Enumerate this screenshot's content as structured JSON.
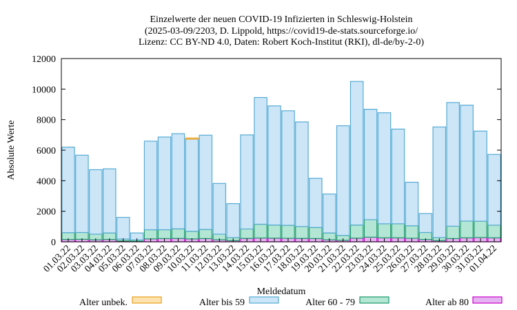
{
  "chart_data": {
    "type": "bar",
    "stacked": true,
    "title_lines": [
      "Einzelwerte der neuen COVID-19 Infizierten in Schleswig-Holstein",
      "(2025-03-09/2203, D. Lippold, https://covid19-de-stats.sourceforge.io/",
      "Lizenz: CC BY-ND 4.0, Daten: Robert Koch-Institut (RKI), dl-de/by-2-0)"
    ],
    "xlabel": "Meldedatum",
    "ylabel": "Absolute Werte",
    "ylim": [
      0,
      12000
    ],
    "yticks": [
      0,
      2000,
      4000,
      6000,
      8000,
      10000,
      12000
    ],
    "grid": false,
    "legend_position": "bottom",
    "categories": [
      "01.03.22",
      "02.03.22",
      "03.03.22",
      "04.03.22",
      "05.03.22",
      "06.03.22",
      "07.03.22",
      "08.03.22",
      "09.03.22",
      "10.03.22",
      "11.03.22",
      "12.03.22",
      "13.03.22",
      "14.03.22",
      "15.03.22",
      "16.03.22",
      "17.03.22",
      "18.03.22",
      "19.03.22",
      "20.03.22",
      "21.03.22",
      "22.03.22",
      "23.03.22",
      "24.03.22",
      "25.03.22",
      "26.03.22",
      "27.03.22",
      "28.03.22",
      "29.03.22",
      "30.03.22",
      "31.03.22",
      "01.04.22"
    ],
    "series": [
      {
        "name": "Alter ab 80",
        "color": "#cc00cc",
        "fill": "#e6b3f2",
        "values": [
          150,
          160,
          130,
          150,
          60,
          40,
          190,
          210,
          220,
          190,
          210,
          130,
          80,
          220,
          250,
          240,
          230,
          220,
          210,
          130,
          100,
          240,
          300,
          260,
          260,
          230,
          150,
          80,
          210,
          260,
          280,
          260
        ]
      },
      {
        "name": "Alter 60 - 79",
        "color": "#1a9a6a",
        "fill": "#b3e6d4",
        "values": [
          450,
          450,
          370,
          430,
          120,
          80,
          600,
          580,
          630,
          500,
          600,
          370,
          200,
          620,
          900,
          860,
          850,
          780,
          730,
          450,
          320,
          860,
          1150,
          920,
          920,
          820,
          460,
          200,
          810,
          1100,
          1070,
          830
        ]
      },
      {
        "name": "Alter bis 59",
        "color": "#55aad4",
        "fill": "#cce6f7",
        "values": [
          5600,
          5060,
          4220,
          4200,
          1420,
          460,
          5800,
          6070,
          6230,
          6030,
          6170,
          3320,
          2220,
          6160,
          8300,
          7800,
          7500,
          6850,
          3220,
          2550,
          7180,
          9400,
          7230,
          7270,
          6200,
          2850,
          1240,
          7240,
          8100,
          7590,
          5900,
          4630
        ]
      },
      {
        "name": "Alter unbek.",
        "color": "#e8a020",
        "fill": "#fce3b0",
        "values": [
          0,
          0,
          0,
          0,
          0,
          0,
          0,
          0,
          0,
          80,
          0,
          0,
          0,
          0,
          0,
          0,
          0,
          0,
          0,
          0,
          0,
          0,
          0,
          0,
          0,
          0,
          0,
          0,
          0,
          0,
          0,
          0
        ]
      }
    ]
  }
}
